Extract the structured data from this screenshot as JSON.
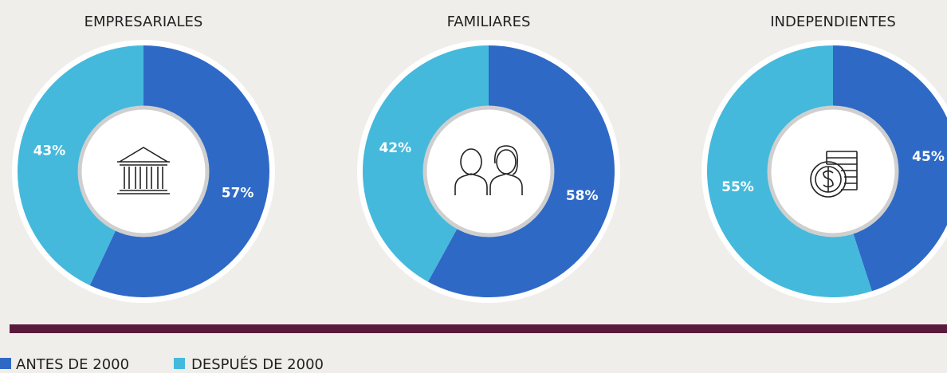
{
  "chart_data": [
    {
      "type": "pie",
      "title": "EMPRESARIALES",
      "categories": [
        "ANTES DE 2000",
        "DESPUÉS DE 2000"
      ],
      "values": [
        57,
        43
      ],
      "value_labels": [
        "57%",
        "43%"
      ],
      "colors": [
        "#2f69c6",
        "#44b9dc"
      ]
    },
    {
      "type": "pie",
      "title": "FAMILIARES",
      "categories": [
        "ANTES DE 2000",
        "DESPUÉS DE 2000"
      ],
      "values": [
        58,
        42
      ],
      "value_labels": [
        "58%",
        "42%"
      ],
      "colors": [
        "#2f69c6",
        "#44b9dc"
      ]
    },
    {
      "type": "pie",
      "title": "INDEPENDIENTES",
      "categories": [
        "ANTES DE 2000",
        "DESPUÉS DE 2000"
      ],
      "values": [
        45,
        55
      ],
      "value_labels": [
        "45%",
        "55%"
      ],
      "colors": [
        "#2f69c6",
        "#44b9dc"
      ]
    }
  ]
}
